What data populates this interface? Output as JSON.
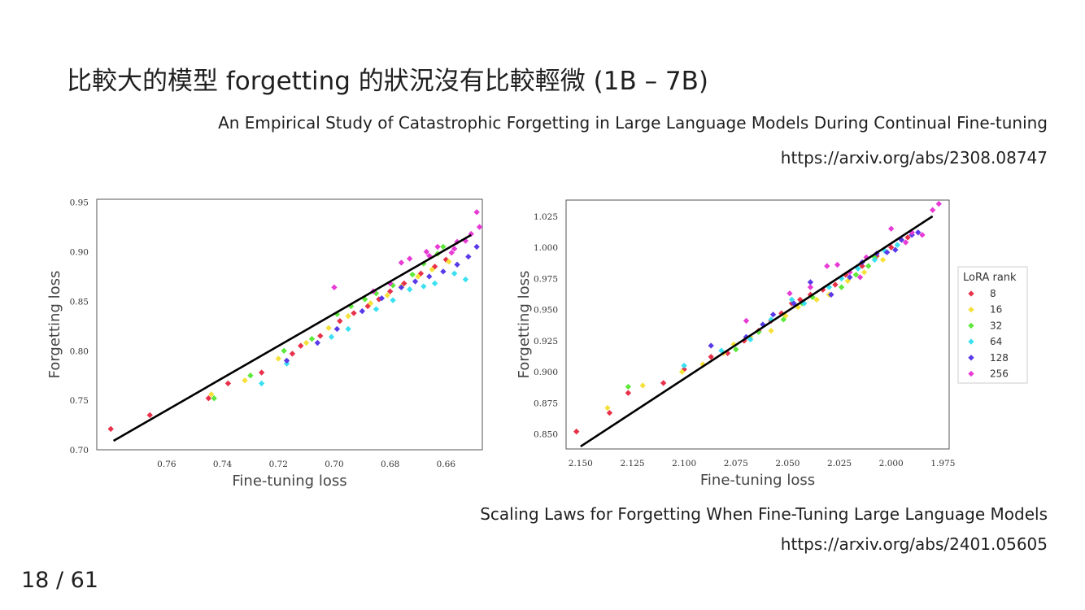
{
  "slide": {
    "title": "比較大的模型 forgetting 的狀況沒有比較輕微 (1B – 7B)",
    "ref1_title": "An Empirical Study of Catastrophic Forgetting in Large Language Models During Continual Fine-tuning",
    "ref1_url": "https://arxiv.org/abs/2308.08747",
    "ref2_title": "Scaling Laws for Forgetting When Fine-Tuning Large Language Models",
    "ref2_url": "https://arxiv.org/abs/2401.05605",
    "page_number": "18 / 61"
  },
  "chart_data": [
    {
      "type": "scatter",
      "xlabel": "Fine-tuning loss",
      "ylabel": "Forgetting loss",
      "xlim": [
        0.785,
        0.647
      ],
      "ylim": [
        0.7,
        0.953
      ],
      "x_inverted": true,
      "xticks": [
        0.76,
        0.74,
        0.72,
        0.7,
        0.68,
        0.66
      ],
      "yticks": [
        0.7,
        0.75,
        0.8,
        0.85,
        0.9,
        0.95
      ],
      "fit_line": {
        "x": [
          0.779,
          0.651
        ],
        "y": [
          0.709,
          0.917
        ]
      },
      "series": [
        {
          "name": "8",
          "color": "#e8304a",
          "points": [
            [
              0.78,
              0.721
            ],
            [
              0.766,
              0.735
            ],
            [
              0.745,
              0.752
            ],
            [
              0.738,
              0.767
            ],
            [
              0.726,
              0.778
            ],
            [
              0.715,
              0.797
            ],
            [
              0.712,
              0.805
            ],
            [
              0.705,
              0.815
            ],
            [
              0.698,
              0.83
            ],
            [
              0.693,
              0.838
            ],
            [
              0.688,
              0.845
            ],
            [
              0.684,
              0.852
            ],
            [
              0.68,
              0.86
            ],
            [
              0.675,
              0.868
            ],
            [
              0.669,
              0.878
            ],
            [
              0.664,
              0.885
            ],
            [
              0.66,
              0.892
            ]
          ]
        },
        {
          "name": "16",
          "color": "#f5e13a",
          "points": [
            [
              0.744,
              0.756
            ],
            [
              0.732,
              0.77
            ],
            [
              0.72,
              0.792
            ],
            [
              0.71,
              0.808
            ],
            [
              0.702,
              0.823
            ],
            [
              0.695,
              0.835
            ],
            [
              0.687,
              0.848
            ],
            [
              0.681,
              0.856
            ],
            [
              0.676,
              0.865
            ],
            [
              0.67,
              0.875
            ],
            [
              0.665,
              0.882
            ],
            [
              0.659,
              0.89
            ]
          ]
        },
        {
          "name": "32",
          "color": "#5de83a",
          "points": [
            [
              0.743,
              0.752
            ],
            [
              0.73,
              0.775
            ],
            [
              0.718,
              0.8
            ],
            [
              0.708,
              0.812
            ],
            [
              0.699,
              0.837
            ],
            [
              0.694,
              0.845
            ],
            [
              0.689,
              0.852
            ],
            [
              0.685,
              0.858
            ],
            [
              0.679,
              0.866
            ],
            [
              0.672,
              0.877
            ],
            [
              0.668,
              0.888
            ],
            [
              0.663,
              0.898
            ],
            [
              0.661,
              0.905
            ]
          ]
        },
        {
          "name": "64",
          "color": "#3ae0f0",
          "points": [
            [
              0.726,
              0.767
            ],
            [
              0.717,
              0.787
            ],
            [
              0.701,
              0.814
            ],
            [
              0.695,
              0.822
            ],
            [
              0.685,
              0.842
            ],
            [
              0.679,
              0.851
            ],
            [
              0.673,
              0.862
            ],
            [
              0.668,
              0.865
            ],
            [
              0.664,
              0.868
            ],
            [
              0.657,
              0.878
            ],
            [
              0.653,
              0.872
            ]
          ]
        },
        {
          "name": "128",
          "color": "#5a3ae8",
          "points": [
            [
              0.717,
              0.79
            ],
            [
              0.706,
              0.808
            ],
            [
              0.699,
              0.822
            ],
            [
              0.69,
              0.84
            ],
            [
              0.683,
              0.853
            ],
            [
              0.676,
              0.864
            ],
            [
              0.671,
              0.87
            ],
            [
              0.666,
              0.875
            ],
            [
              0.661,
              0.88
            ],
            [
              0.656,
              0.887
            ],
            [
              0.652,
              0.895
            ],
            [
              0.649,
              0.905
            ]
          ]
        },
        {
          "name": "256",
          "color": "#e83ad5",
          "points": [
            [
              0.7,
              0.864
            ],
            [
              0.686,
              0.86
            ],
            [
              0.68,
              0.868
            ],
            [
              0.676,
              0.889
            ],
            [
              0.673,
              0.893
            ],
            [
              0.667,
              0.9
            ],
            [
              0.663,
              0.905
            ],
            [
              0.658,
              0.899
            ],
            [
              0.656,
              0.91
            ],
            [
              0.651,
              0.918
            ],
            [
              0.649,
              0.94
            ],
            [
              0.648,
              0.925
            ],
            [
              0.653,
              0.911
            ],
            [
              0.657,
              0.903
            ],
            [
              0.666,
              0.896
            ]
          ]
        }
      ]
    },
    {
      "type": "scatter",
      "xlabel": "Fine-tuning loss",
      "ylabel": "Forgetting loss",
      "xlim": [
        2.157,
        1.972
      ],
      "ylim": [
        0.838,
        1.038
      ],
      "x_inverted": true,
      "xticks": [
        2.15,
        2.125,
        2.1,
        2.075,
        2.05,
        2.025,
        2.0,
        1.975
      ],
      "yticks": [
        0.85,
        0.875,
        0.9,
        0.925,
        0.95,
        0.975,
        1.0,
        1.025
      ],
      "fit_line": {
        "x": [
          2.15,
          1.98
        ],
        "y": [
          0.84,
          1.025
        ]
      },
      "legend": {
        "title": "LoRA rank",
        "location": "outside-right"
      },
      "series": [
        {
          "name": "8",
          "color": "#e8304a",
          "points": [
            [
              2.152,
              0.852
            ],
            [
              2.136,
              0.867
            ],
            [
              2.127,
              0.883
            ],
            [
              2.11,
              0.891
            ],
            [
              2.1,
              0.902
            ],
            [
              2.087,
              0.912
            ],
            [
              2.079,
              0.915
            ],
            [
              2.071,
              0.925
            ],
            [
              2.064,
              0.933
            ],
            [
              2.058,
              0.941
            ],
            [
              2.053,
              0.947
            ],
            [
              2.048,
              0.955
            ],
            [
              2.044,
              0.958
            ],
            [
              2.039,
              0.962
            ],
            [
              2.033,
              0.966
            ],
            [
              2.027,
              0.97
            ],
            [
              2.022,
              0.978
            ],
            [
              2.014,
              0.985
            ],
            [
              2.007,
              0.993
            ],
            [
              2.0,
              1.0
            ],
            [
              1.992,
              1.008
            ]
          ]
        },
        {
          "name": "16",
          "color": "#f5e13a",
          "points": [
            [
              2.137,
              0.871
            ],
            [
              2.12,
              0.889
            ],
            [
              2.101,
              0.9
            ],
            [
              2.091,
              0.906
            ],
            [
              2.081,
              0.915
            ],
            [
              2.076,
              0.922
            ],
            [
              2.068,
              0.928
            ],
            [
              2.058,
              0.933
            ],
            [
              2.051,
              0.945
            ],
            [
              2.045,
              0.952
            ],
            [
              2.036,
              0.958
            ],
            [
              2.03,
              0.962
            ],
            [
              2.021,
              0.973
            ],
            [
              2.013,
              0.98
            ],
            [
              2.004,
              0.99
            ]
          ]
        },
        {
          "name": "32",
          "color": "#5de83a",
          "points": [
            [
              2.127,
              0.888
            ],
            [
              2.075,
              0.918
            ],
            [
              2.064,
              0.932
            ],
            [
              2.052,
              0.942
            ],
            [
              2.043,
              0.955
            ],
            [
              2.038,
              0.96
            ],
            [
              2.024,
              0.968
            ],
            [
              2.017,
              0.978
            ],
            [
              2.011,
              0.985
            ],
            [
              2.008,
              0.992
            ]
          ]
        },
        {
          "name": "64",
          "color": "#3ae0f0",
          "points": [
            [
              2.1,
              0.905
            ],
            [
              2.082,
              0.917
            ],
            [
              2.068,
              0.926
            ],
            [
              2.058,
              0.942
            ],
            [
              2.048,
              0.958
            ],
            [
              2.042,
              0.955
            ],
            [
              2.03,
              0.968
            ],
            [
              2.024,
              0.975
            ],
            [
              2.016,
              0.983
            ],
            [
              2.008,
              0.99
            ],
            [
              2.003,
              0.997
            ],
            [
              1.997,
              1.002
            ]
          ]
        },
        {
          "name": "128",
          "color": "#5a3ae8",
          "points": [
            [
              2.087,
              0.921
            ],
            [
              2.07,
              0.928
            ],
            [
              2.062,
              0.938
            ],
            [
              2.057,
              0.946
            ],
            [
              2.047,
              0.955
            ],
            [
              2.039,
              0.972
            ],
            [
              2.029,
              0.962
            ],
            [
              2.02,
              0.976
            ],
            [
              2.014,
              0.988
            ],
            [
              2.007,
              0.995
            ],
            [
              2.002,
              0.996
            ],
            [
              1.998,
              0.998
            ],
            [
              1.995,
              1.006
            ],
            [
              1.99,
              1.01
            ],
            [
              1.987,
              1.012
            ]
          ]
        },
        {
          "name": "256",
          "color": "#e83ad5",
          "points": [
            [
              2.07,
              0.941
            ],
            [
              2.049,
              0.963
            ],
            [
              2.039,
              0.968
            ],
            [
              2.031,
              0.985
            ],
            [
              2.026,
              0.986
            ],
            [
              2.02,
              0.98
            ],
            [
              2.012,
              0.992
            ],
            [
              2.0,
              1.015
            ],
            [
              1.99,
              1.012
            ],
            [
              1.985,
              1.01
            ],
            [
              1.98,
              1.03
            ],
            [
              1.977,
              1.035
            ],
            [
              1.993,
              1.004
            ],
            [
              2.015,
              0.976
            ]
          ]
        }
      ]
    }
  ]
}
